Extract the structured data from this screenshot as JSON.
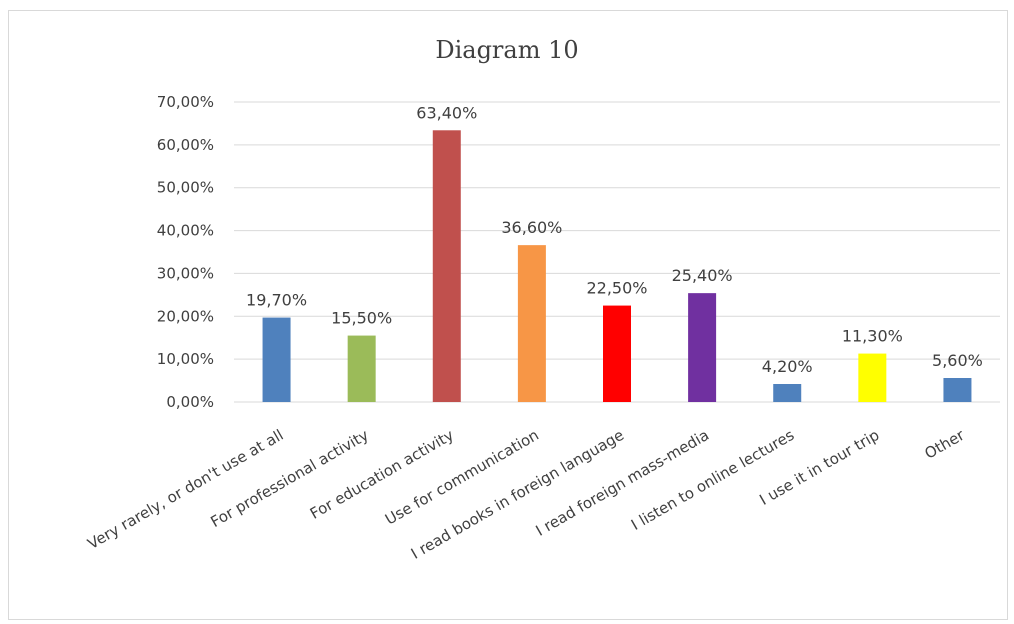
{
  "chart_data": {
    "type": "bar",
    "title": "Diagram 10",
    "categories": [
      "Very rarely, or don't use at all",
      "For professional activity",
      "For education activity",
      "Use for communication",
      "I read books in foreign language",
      "I read foreign mass-media",
      "I listen to online lectures",
      "I use it in tour trip",
      "Other"
    ],
    "values": [
      19.7,
      15.5,
      63.4,
      36.6,
      22.5,
      25.4,
      4.2,
      11.3,
      5.6
    ],
    "data_labels": [
      "19,70%",
      "15,50%",
      "63,40%",
      "36,60%",
      "22,50%",
      "25,40%",
      "4,20%",
      "11,30%",
      "5,60%"
    ],
    "colors": [
      "#4f81bd",
      "#9bbb59",
      "#c0504d",
      "#f79646",
      "#ff0000",
      "#7030a0",
      "#4f81bd",
      "#ffff00",
      "#4f81bd"
    ],
    "ylim": [
      0,
      70
    ],
    "yticks": [
      0,
      10,
      20,
      30,
      40,
      50,
      60,
      70
    ],
    "ytick_labels": [
      "0,00%",
      "10,00%",
      "20,00%",
      "30,00%",
      "40,00%",
      "50,00%",
      "60,00%",
      "70,00%"
    ],
    "grid": true,
    "gridline_color": "#d9d9d9",
    "legend": "none"
  }
}
